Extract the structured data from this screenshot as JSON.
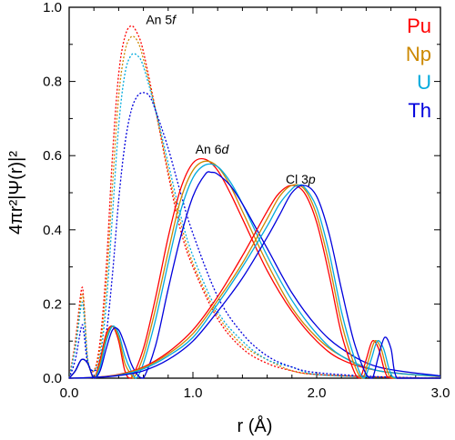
{
  "chart_data": {
    "type": "line",
    "xlabel": "r (Å)",
    "ylabel": "4πr²|Ψ(r)|²",
    "xlim": [
      0.0,
      3.0
    ],
    "ylim": [
      0.0,
      1.0
    ],
    "x_ticks": [
      "0.0",
      "1.0",
      "2.0",
      "3.0"
    ],
    "y_ticks": [
      "0.0",
      "0.2",
      "0.4",
      "0.6",
      "0.8",
      "1.0"
    ],
    "grid": false,
    "legend_position": "top-right",
    "legend": [
      {
        "name": "Pu",
        "color": "#ff0000"
      },
      {
        "name": "Np",
        "color": "#cc8800"
      },
      {
        "name": "U",
        "color": "#00aadd"
      },
      {
        "name": "Th",
        "color": "#0000dd"
      }
    ],
    "annotations": [
      {
        "base": "An 5",
        "italic": "f",
        "x": 0.62,
        "y": 0.955
      },
      {
        "base": "An 6",
        "italic": "d",
        "x": 1.02,
        "y": 0.605
      },
      {
        "base": "Cl 3",
        "italic": "p",
        "x": 1.75,
        "y": 0.525
      }
    ],
    "series": [
      {
        "name": "Pu",
        "orbital": "5f",
        "style": "dotted",
        "color": "#ff0000",
        "x": [
          0.0,
          0.05,
          0.1,
          0.12,
          0.15,
          0.2,
          0.25,
          0.3,
          0.35,
          0.4,
          0.45,
          0.5,
          0.55,
          0.6,
          0.7,
          0.8,
          0.9,
          1.0,
          1.2,
          1.4,
          1.6,
          1.8,
          2.0,
          2.5,
          3.0
        ],
        "y": [
          0.0,
          0.1,
          0.24,
          0.2,
          0.05,
          0.02,
          0.1,
          0.3,
          0.6,
          0.82,
          0.92,
          0.95,
          0.93,
          0.88,
          0.72,
          0.55,
          0.4,
          0.3,
          0.16,
          0.08,
          0.04,
          0.02,
          0.01,
          0.003,
          0.0
        ]
      },
      {
        "name": "Np",
        "orbital": "5f",
        "style": "dotted",
        "color": "#cc8800",
        "x": [
          0.0,
          0.05,
          0.1,
          0.12,
          0.15,
          0.2,
          0.25,
          0.3,
          0.35,
          0.4,
          0.45,
          0.5,
          0.55,
          0.6,
          0.7,
          0.8,
          0.9,
          1.0,
          1.2,
          1.4,
          1.6,
          1.8,
          2.0,
          2.5,
          3.0
        ],
        "y": [
          0.0,
          0.09,
          0.22,
          0.19,
          0.05,
          0.02,
          0.08,
          0.25,
          0.52,
          0.76,
          0.88,
          0.92,
          0.91,
          0.86,
          0.72,
          0.56,
          0.42,
          0.31,
          0.17,
          0.09,
          0.05,
          0.02,
          0.01,
          0.003,
          0.0
        ]
      },
      {
        "name": "U",
        "orbital": "5f",
        "style": "dotted",
        "color": "#00aadd",
        "x": [
          0.0,
          0.05,
          0.1,
          0.12,
          0.15,
          0.2,
          0.25,
          0.3,
          0.35,
          0.4,
          0.45,
          0.5,
          0.55,
          0.6,
          0.7,
          0.8,
          0.9,
          1.0,
          1.2,
          1.4,
          1.6,
          1.8,
          2.0,
          2.5,
          3.0
        ],
        "y": [
          0.0,
          0.08,
          0.2,
          0.17,
          0.05,
          0.02,
          0.06,
          0.2,
          0.44,
          0.68,
          0.82,
          0.87,
          0.87,
          0.84,
          0.72,
          0.58,
          0.44,
          0.33,
          0.18,
          0.1,
          0.05,
          0.03,
          0.01,
          0.003,
          0.0
        ]
      },
      {
        "name": "Th",
        "orbital": "5f",
        "style": "dotted",
        "color": "#0000dd",
        "x": [
          0.0,
          0.05,
          0.1,
          0.12,
          0.15,
          0.2,
          0.25,
          0.3,
          0.35,
          0.4,
          0.45,
          0.5,
          0.55,
          0.6,
          0.65,
          0.7,
          0.8,
          0.9,
          1.0,
          1.2,
          1.4,
          1.6,
          1.8,
          2.0,
          2.5,
          3.0
        ],
        "y": [
          0.0,
          0.05,
          0.14,
          0.12,
          0.04,
          0.02,
          0.04,
          0.12,
          0.28,
          0.48,
          0.63,
          0.72,
          0.76,
          0.77,
          0.76,
          0.72,
          0.62,
          0.5,
          0.39,
          0.22,
          0.12,
          0.06,
          0.03,
          0.015,
          0.004,
          0.0
        ]
      },
      {
        "name": "Pu",
        "orbital": "6d",
        "style": "solid",
        "color": "#ff0000",
        "x": [
          0.0,
          0.05,
          0.1,
          0.15,
          0.2,
          0.25,
          0.3,
          0.35,
          0.4,
          0.45,
          0.5,
          0.6,
          0.7,
          0.8,
          0.9,
          1.0,
          1.1,
          1.2,
          1.3,
          1.4,
          1.6,
          1.8,
          2.0,
          2.2,
          2.5,
          3.0
        ],
        "y": [
          0.0,
          0.02,
          0.05,
          0.04,
          0.0,
          0.05,
          0.12,
          0.14,
          0.1,
          0.02,
          0.0,
          0.08,
          0.22,
          0.38,
          0.51,
          0.58,
          0.59,
          0.56,
          0.5,
          0.43,
          0.29,
          0.18,
          0.1,
          0.05,
          0.02,
          0.004
        ]
      },
      {
        "name": "Np",
        "orbital": "6d",
        "style": "solid",
        "color": "#cc8800",
        "x": [
          0.0,
          0.05,
          0.1,
          0.15,
          0.2,
          0.25,
          0.3,
          0.35,
          0.4,
          0.45,
          0.5,
          0.52,
          0.6,
          0.7,
          0.8,
          0.9,
          1.0,
          1.1,
          1.2,
          1.3,
          1.4,
          1.6,
          1.8,
          2.0,
          2.2,
          2.5,
          3.0
        ],
        "y": [
          0.0,
          0.02,
          0.05,
          0.04,
          0.0,
          0.04,
          0.11,
          0.14,
          0.11,
          0.04,
          0.01,
          0.0,
          0.06,
          0.19,
          0.34,
          0.48,
          0.56,
          0.585,
          0.57,
          0.52,
          0.45,
          0.31,
          0.19,
          0.11,
          0.06,
          0.02,
          0.004
        ]
      },
      {
        "name": "U",
        "orbital": "6d",
        "style": "solid",
        "color": "#00aadd",
        "x": [
          0.0,
          0.05,
          0.1,
          0.15,
          0.2,
          0.25,
          0.3,
          0.35,
          0.4,
          0.45,
          0.5,
          0.54,
          0.6,
          0.7,
          0.8,
          0.9,
          1.0,
          1.1,
          1.2,
          1.3,
          1.4,
          1.6,
          1.8,
          2.0,
          2.2,
          2.5,
          3.0
        ],
        "y": [
          0.0,
          0.02,
          0.05,
          0.04,
          0.0,
          0.03,
          0.1,
          0.14,
          0.12,
          0.06,
          0.02,
          0.0,
          0.04,
          0.16,
          0.31,
          0.45,
          0.54,
          0.575,
          0.57,
          0.53,
          0.47,
          0.33,
          0.21,
          0.12,
          0.06,
          0.02,
          0.005
        ]
      },
      {
        "name": "Th",
        "orbital": "6d",
        "style": "solid",
        "color": "#0000dd",
        "x": [
          0.0,
          0.05,
          0.1,
          0.15,
          0.2,
          0.25,
          0.3,
          0.35,
          0.4,
          0.45,
          0.5,
          0.55,
          0.6,
          0.7,
          0.8,
          0.9,
          1.0,
          1.1,
          1.15,
          1.2,
          1.3,
          1.4,
          1.6,
          1.8,
          2.0,
          2.2,
          2.5,
          3.0
        ],
        "y": [
          0.0,
          0.02,
          0.05,
          0.04,
          0.0,
          0.02,
          0.08,
          0.13,
          0.13,
          0.09,
          0.04,
          0.01,
          0.0,
          0.09,
          0.24,
          0.38,
          0.49,
          0.55,
          0.555,
          0.55,
          0.52,
          0.47,
          0.35,
          0.23,
          0.14,
          0.08,
          0.03,
          0.006
        ]
      },
      {
        "name": "Pu",
        "orbital": "3p",
        "style": "solid",
        "color": "#ff0000",
        "x": [
          0.0,
          0.2,
          0.4,
          0.6,
          0.8,
          1.0,
          1.2,
          1.4,
          1.6,
          1.7,
          1.8,
          1.9,
          2.0,
          2.1,
          2.2,
          2.3,
          2.35,
          2.4,
          2.45,
          2.5,
          2.55,
          2.6,
          2.8,
          3.0
        ],
        "y": [
          0.0,
          0.002,
          0.01,
          0.03,
          0.07,
          0.13,
          0.22,
          0.33,
          0.45,
          0.5,
          0.52,
          0.5,
          0.42,
          0.28,
          0.12,
          0.02,
          0.0,
          0.05,
          0.1,
          0.08,
          0.02,
          0.0,
          0.0,
          0.0
        ]
      },
      {
        "name": "Np",
        "orbital": "3p",
        "style": "solid",
        "color": "#cc8800",
        "x": [
          0.0,
          0.2,
          0.4,
          0.6,
          0.8,
          1.0,
          1.2,
          1.4,
          1.6,
          1.7,
          1.8,
          1.9,
          2.0,
          2.1,
          2.2,
          2.3,
          2.37,
          2.42,
          2.47,
          2.52,
          2.57,
          2.62,
          2.8,
          3.0
        ],
        "y": [
          0.0,
          0.002,
          0.009,
          0.028,
          0.065,
          0.12,
          0.21,
          0.31,
          0.43,
          0.49,
          0.52,
          0.51,
          0.44,
          0.31,
          0.15,
          0.04,
          0.0,
          0.05,
          0.1,
          0.08,
          0.02,
          0.0,
          0.0,
          0.0
        ]
      },
      {
        "name": "U",
        "orbital": "3p",
        "style": "solid",
        "color": "#00aadd",
        "x": [
          0.0,
          0.2,
          0.4,
          0.6,
          0.8,
          1.0,
          1.2,
          1.4,
          1.6,
          1.7,
          1.8,
          1.85,
          1.9,
          2.0,
          2.1,
          2.2,
          2.3,
          2.38,
          2.44,
          2.49,
          2.54,
          2.59,
          2.64,
          2.8,
          3.0
        ],
        "y": [
          0.0,
          0.002,
          0.008,
          0.025,
          0.06,
          0.11,
          0.2,
          0.3,
          0.41,
          0.47,
          0.51,
          0.52,
          0.515,
          0.46,
          0.34,
          0.18,
          0.06,
          0.0,
          0.05,
          0.1,
          0.08,
          0.02,
          0.0,
          0.0,
          0.0
        ]
      },
      {
        "name": "Th",
        "orbital": "3p",
        "style": "solid",
        "color": "#0000dd",
        "x": [
          0.0,
          0.2,
          0.4,
          0.6,
          0.8,
          1.0,
          1.2,
          1.4,
          1.6,
          1.7,
          1.8,
          1.9,
          2.0,
          2.1,
          2.2,
          2.3,
          2.4,
          2.45,
          2.5,
          2.55,
          2.6,
          2.65,
          2.8,
          3.0
        ],
        "y": [
          0.0,
          0.002,
          0.007,
          0.02,
          0.05,
          0.1,
          0.18,
          0.27,
          0.38,
          0.44,
          0.5,
          0.52,
          0.49,
          0.39,
          0.24,
          0.1,
          0.01,
          0.0,
          0.06,
          0.11,
          0.08,
          0.0,
          0.0,
          0.0
        ]
      }
    ]
  }
}
